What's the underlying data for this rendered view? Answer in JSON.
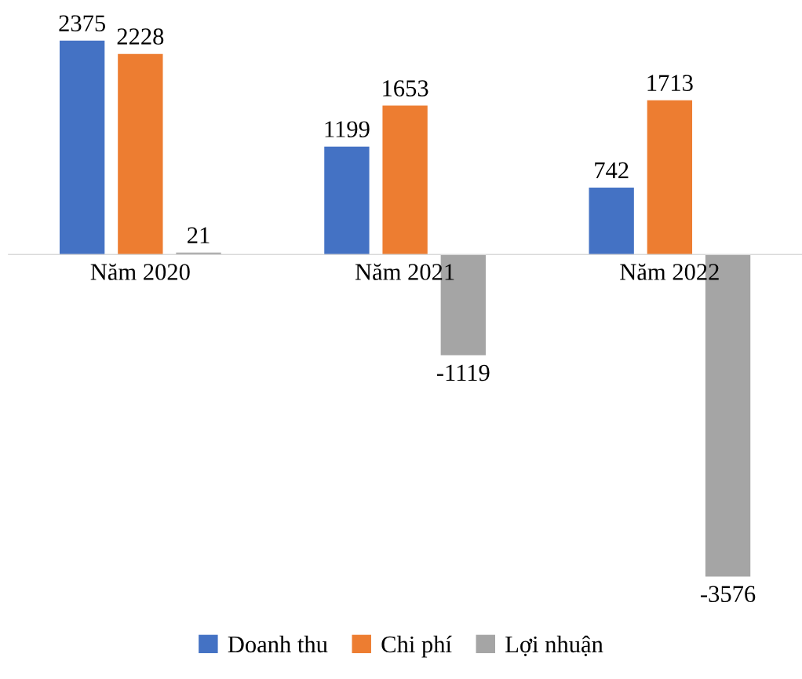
{
  "chart_data": {
    "type": "bar",
    "categories": [
      "Năm 2020",
      "Năm 2021",
      "Năm 2022"
    ],
    "series": [
      {
        "name": "Doanh thu",
        "color": "#4472c4",
        "values": [
          2375,
          1199,
          742
        ]
      },
      {
        "name": "Chi phí",
        "color": "#ed7d31",
        "values": [
          2228,
          1653,
          1713
        ]
      },
      {
        "name": "Lợi nhuận",
        "color": "#a5a5a5",
        "values": [
          21,
          -1119,
          -3576
        ]
      }
    ],
    "data_labels": true,
    "legend": "bottom"
  }
}
